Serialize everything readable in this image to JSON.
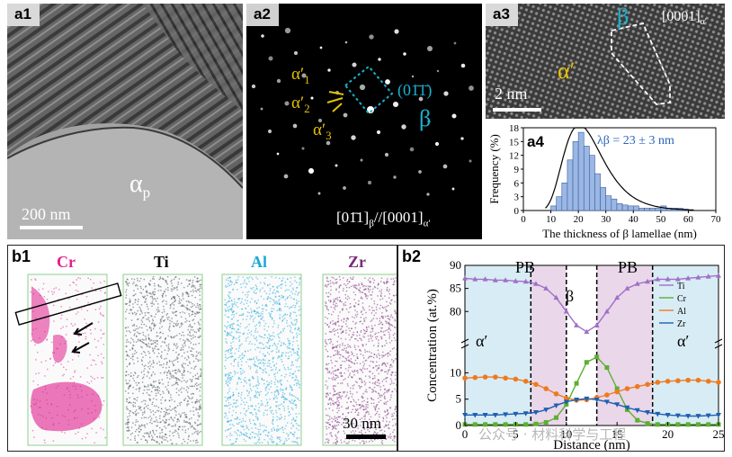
{
  "panels": {
    "a1": {
      "label": "a1",
      "phase": "α",
      "phase_sub": "p",
      "scale": "200 nm"
    },
    "a2": {
      "label": "a2",
      "spots": [
        {
          "base": "α′",
          "sub": "1"
        },
        {
          "base": "α′",
          "sub": "2"
        },
        {
          "base": "α′",
          "sub": "3"
        }
      ],
      "plane": "(01̄1̄)",
      "beta": "β",
      "zone": "[01̄1]",
      "zone_sub1": "β",
      "zone_mid": "//[0001]",
      "zone_sub2": "α′"
    },
    "a3": {
      "label": "a3",
      "beta": "β",
      "alpha": "α′",
      "zone": "[0001]",
      "zone_sub": "α′",
      "scale": "2 nm"
    },
    "a4": {
      "label": "a4"
    },
    "b1": {
      "label": "b1",
      "elements": [
        "Cr",
        "Ti",
        "Al",
        "Zr"
      ],
      "scale": "30 nm"
    },
    "b2": {
      "label": "b2",
      "regions": [
        "PB",
        "β",
        "PB"
      ],
      "alpha_left": "α′",
      "alpha_right": "α′"
    }
  },
  "colors": {
    "Cr": "#e0208e",
    "Ti": "#000000",
    "Al": "#1aa8d8",
    "Zr": "#7a2b7a",
    "beta_label": "#1a8fb0",
    "alpha_label": "#e6c200"
  },
  "watermark": "公众号 · 材料科学与工程",
  "chart_data": [
    {
      "type": "bar",
      "title": "",
      "annotation": "λβ = 23 ± 3 nm",
      "xlabel": "The thickness of β lamellae (nm)",
      "ylabel": "Frequency (%)",
      "xlim": [
        0,
        70
      ],
      "ylim": [
        0,
        18
      ],
      "xticks": [
        0,
        10,
        20,
        30,
        40,
        50,
        60,
        70
      ],
      "yticks": [
        0,
        3,
        6,
        9,
        12,
        15,
        18
      ],
      "bin_width": 2,
      "x": [
        11,
        13,
        15,
        17,
        19,
        21,
        23,
        25,
        27,
        29,
        31,
        33,
        35,
        37,
        39,
        41,
        43,
        45,
        47,
        49,
        51,
        53,
        55,
        57,
        59
      ],
      "values": [
        1,
        3,
        6,
        11,
        15,
        17,
        14,
        12,
        8,
        5,
        3.2,
        2.5,
        1.5,
        1.2,
        1,
        1,
        0.5,
        0.5,
        0.5,
        0.5,
        1,
        0.5,
        0.5,
        0.5,
        0.3
      ],
      "fit_peak": 20,
      "grid": false
    },
    {
      "type": "line",
      "title": "",
      "xlabel": "Distance (nm)",
      "ylabel": "Concentration (at.%)",
      "xlim": [
        0,
        25
      ],
      "xticks": [
        0,
        5,
        10,
        15,
        20,
        25
      ],
      "yticks_lower": [
        0,
        5,
        10
      ],
      "yticks_upper": [
        80,
        85,
        90
      ],
      "axis_break": true,
      "boundaries": [
        6.5,
        10,
        13,
        18.5
      ],
      "legend_position": "top-right",
      "x": [
        0,
        1,
        2,
        3,
        4,
        5,
        6,
        7,
        8,
        9,
        10,
        11,
        12,
        13,
        14,
        15,
        16,
        17,
        18,
        19,
        20,
        21,
        22,
        23,
        24,
        25
      ],
      "series": [
        {
          "name": "Ti",
          "color": "#a070c8",
          "marker": "triangle-up",
          "values": [
            87.2,
            87,
            87,
            86.8,
            86.8,
            86.6,
            86.5,
            86,
            85,
            83,
            80,
            77,
            75.6,
            77,
            80,
            83,
            85,
            86,
            86.5,
            87,
            87,
            87,
            87.2,
            87.4,
            87.6,
            87.8
          ]
        },
        {
          "name": "Cr",
          "color": "#5cb030",
          "marker": "square",
          "values": [
            0.2,
            0.2,
            0.2,
            0.2,
            0.2,
            0.2,
            0.2,
            0.3,
            0.6,
            1.5,
            4,
            8,
            12,
            13,
            11,
            7,
            3,
            1,
            0.4,
            0.2,
            0.2,
            0.2,
            0.2,
            0.2,
            0.2,
            0.2
          ]
        },
        {
          "name": "Al",
          "color": "#ee7a20",
          "marker": "circle",
          "values": [
            9,
            9.1,
            9.2,
            9.2,
            9,
            8.8,
            8.4,
            7.8,
            7,
            6,
            5.2,
            4.8,
            4.9,
            5.3,
            5.8,
            6.4,
            7,
            7.4,
            7.8,
            8.2,
            8.4,
            8.5,
            8.6,
            8.6,
            8.4,
            8.2
          ]
        },
        {
          "name": "Zr",
          "color": "#1f5fb0",
          "marker": "triangle-down",
          "values": [
            2,
            2,
            2,
            2,
            2.1,
            2.2,
            2.3,
            2.5,
            3,
            3.8,
            4.5,
            4.9,
            5.1,
            4.9,
            4.5,
            4,
            3.4,
            2.9,
            2.5,
            2.2,
            2,
            1.9,
            1.8,
            1.8,
            1.9,
            2
          ]
        }
      ]
    }
  ]
}
